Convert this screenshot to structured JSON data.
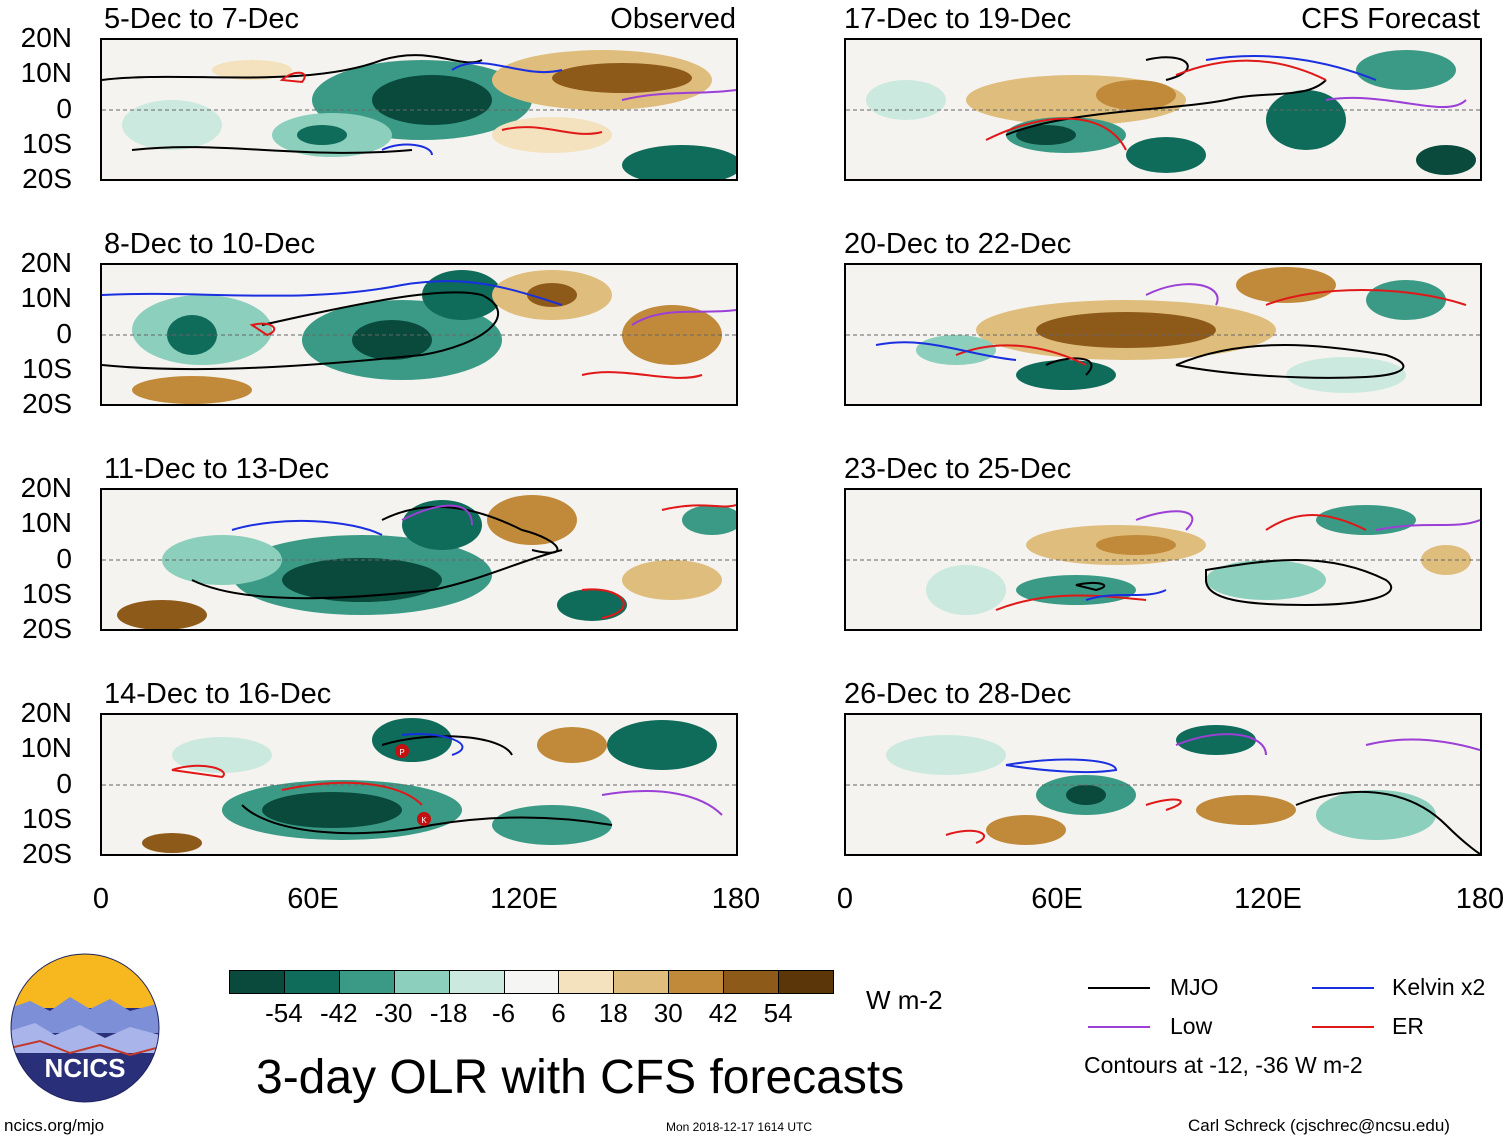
{
  "header": {
    "observed_label": "Observed",
    "forecast_label": "CFS Forecast"
  },
  "panels_left": [
    {
      "title": "5-Dec to 7-Dec"
    },
    {
      "title": "8-Dec to 10-Dec"
    },
    {
      "title": "11-Dec to 13-Dec"
    },
    {
      "title": "14-Dec to 16-Dec"
    }
  ],
  "panels_right": [
    {
      "title": "17-Dec to 19-Dec"
    },
    {
      "title": "20-Dec to 22-Dec"
    },
    {
      "title": "23-Dec to 25-Dec"
    },
    {
      "title": "26-Dec to 28-Dec"
    }
  ],
  "axes": {
    "lat_labels": [
      "20N",
      "10N",
      "0",
      "10S",
      "20S"
    ],
    "lon_labels": [
      "0",
      "60E",
      "120E",
      "180"
    ]
  },
  "colorbar": {
    "colors": [
      "#0a4a3d",
      "#0f6b5a",
      "#3a9a85",
      "#8ccfbc",
      "#cbe9df",
      "#f5f5f3",
      "#f3e2bd",
      "#dfbd7c",
      "#c08a3a",
      "#8e5a1a",
      "#5a3608"
    ],
    "tick_labels": [
      "-54",
      "-42",
      "-30",
      "-18",
      "-6",
      "6",
      "18",
      "30",
      "42",
      "54"
    ],
    "units": "W m-2"
  },
  "legend": {
    "items": [
      {
        "label": "MJO",
        "color": "#000000"
      },
      {
        "label": "Kelvin x2",
        "color": "#1a2fe0"
      },
      {
        "label": "Low",
        "color": "#9b3fd6"
      },
      {
        "label": "ER",
        "color": "#e01818"
      }
    ],
    "note": "Contours at -12, -36 W m-2"
  },
  "storm_markers": [
    "P",
    "K"
  ],
  "logo": {
    "text": "NCICS"
  },
  "footer": {
    "title": "3-day OLR with CFS forecasts",
    "url": "ncics.org/mjo",
    "timestamp": "Mon 2018-12-17 1614 UTC",
    "credit": "Carl Schreck (cjschrec@ncsu.edu)"
  }
}
